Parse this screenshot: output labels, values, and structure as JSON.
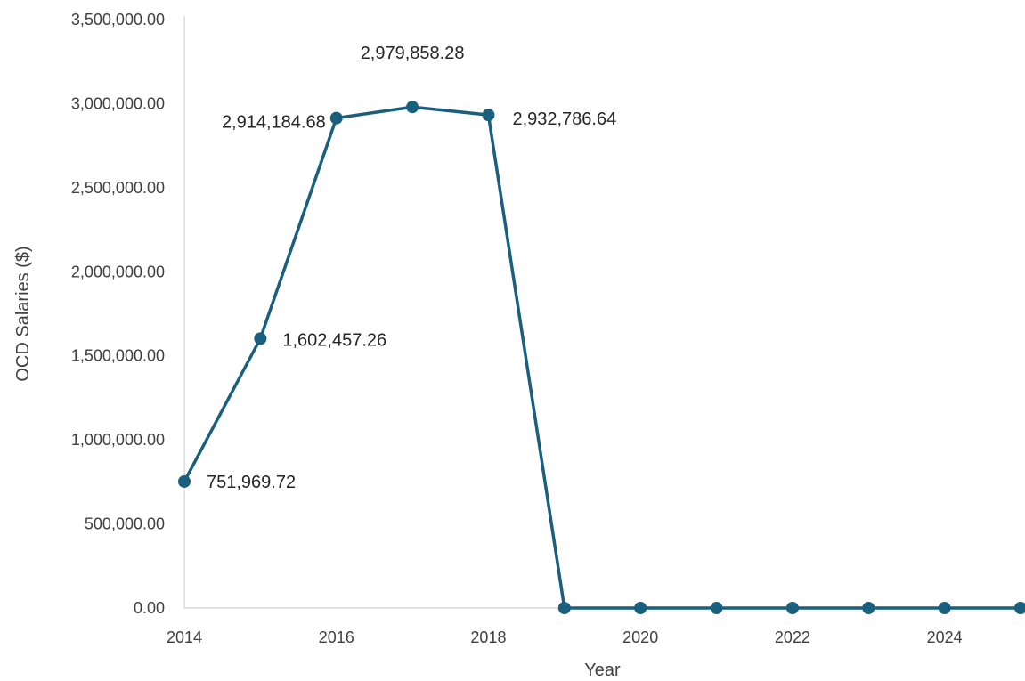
{
  "chart_data": {
    "type": "line",
    "title": "",
    "xlabel": "Year",
    "ylabel": "OCD Salaries ($)",
    "xlim": [
      2014,
      2025
    ],
    "ylim": [
      0,
      3500000
    ],
    "x_ticks": [
      "2014",
      "2016",
      "2018",
      "2020",
      "2022",
      "2024"
    ],
    "y_ticks": [
      "0.00",
      "500,000.00",
      "1,000,000.00",
      "1,500,000.00",
      "2,000,000.00",
      "2,500,000.00",
      "3,000,000.00",
      "3,500,000.00"
    ],
    "grid": false,
    "legend": "none",
    "series": [
      {
        "color": "#1a5f7e",
        "x": [
          2014,
          2015,
          2016,
          2017,
          2018,
          2019,
          2020,
          2021,
          2022,
          2023,
          2024,
          2025
        ],
        "values": [
          751969.72,
          1602457.26,
          2914184.68,
          2979858.28,
          2932786.64,
          0,
          0,
          0,
          0,
          0,
          0,
          0
        ]
      }
    ],
    "data_labels": [
      {
        "index": 0,
        "text": "751,969.72"
      },
      {
        "index": 1,
        "text": "1,602,457.26"
      },
      {
        "index": 2,
        "text": "2,914,184.68"
      },
      {
        "index": 3,
        "text": "2,979,858.28"
      },
      {
        "index": 4,
        "text": "2,932,786.64"
      }
    ]
  }
}
